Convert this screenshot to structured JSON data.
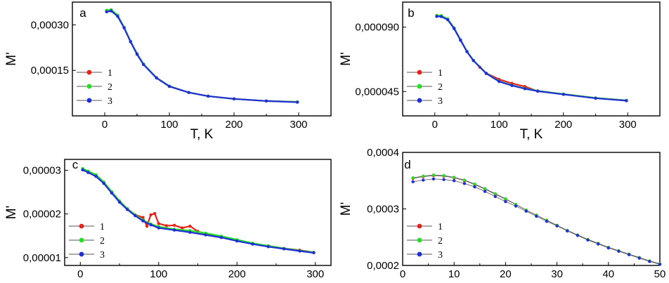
{
  "colors": {
    "s1": "#e8221b",
    "s2": "#22e022",
    "s3": "#1f2fd6",
    "axis": "#000000",
    "line": "#666666"
  },
  "chart_data": [
    {
      "type": "scatter",
      "panel": "a",
      "xlabel": "T, K",
      "ylabel": "M'",
      "xlim": [
        -50,
        350
      ],
      "ylim": [
        0.0,
        0.000375
      ],
      "xticks": [
        0,
        100,
        200,
        300
      ],
      "xtick_labels": [
        "0",
        "100",
        "200",
        "300"
      ],
      "yticks": [
        0.00015,
        0.0003
      ],
      "ytick_labels": [
        "0,00015",
        "0,00030"
      ],
      "legend": [
        "1",
        "2",
        "3"
      ],
      "series": [
        {
          "name": "1",
          "x": [
            3,
            10,
            20,
            30,
            40,
            50,
            60,
            80,
            100,
            130,
            160,
            200,
            250,
            298
          ],
          "y": [
            0.000345,
            0.000348,
            0.00033,
            0.000291,
            0.000245,
            0.000204,
            0.00017,
            0.000126,
            9.8e-05,
            7.7e-05,
            6.5e-05,
            5.6e-05,
            4.9e-05,
            4.6e-05
          ]
        },
        {
          "name": "2",
          "x": [
            3,
            10,
            20,
            30,
            40,
            50,
            60,
            80,
            100,
            130,
            160,
            200,
            250,
            298
          ],
          "y": [
            0.000348,
            0.00035,
            0.000332,
            0.000292,
            0.000246,
            0.000205,
            0.000171,
            0.000126,
            9.8e-05,
            7.7e-05,
            6.5e-05,
            5.6e-05,
            4.9e-05,
            4.6e-05
          ]
        },
        {
          "name": "3",
          "x": [
            3,
            10,
            20,
            30,
            40,
            50,
            60,
            80,
            100,
            130,
            160,
            200,
            250,
            298
          ],
          "y": [
            0.000343,
            0.000346,
            0.000328,
            0.00029,
            0.000244,
            0.000203,
            0.000169,
            0.000125,
            9.7e-05,
            7.7e-05,
            6.5e-05,
            5.6e-05,
            4.9e-05,
            4.5e-05
          ]
        }
      ]
    },
    {
      "type": "scatter",
      "panel": "b",
      "xlabel": "T, K",
      "ylabel": "M'",
      "xlim": [
        -50,
        350
      ],
      "ylim": [
        2.8e-05,
        0.0001075
      ],
      "xticks": [
        0,
        100,
        200,
        300
      ],
      "xtick_labels": [
        "0",
        "100",
        "200",
        "300"
      ],
      "yticks": [
        4.5e-05,
        9e-05
      ],
      "ytick_labels": [
        "0,000045",
        "0,000090"
      ],
      "legend": [
        "1",
        "2",
        "3"
      ],
      "series": [
        {
          "name": "1",
          "x": [
            3,
            10,
            20,
            30,
            40,
            50,
            60,
            70,
            80,
            100,
            120,
            140,
            160,
            200,
            250,
            298
          ],
          "y": [
            9.78e-05,
            9.77e-05,
            9.55e-05,
            8.93e-05,
            8.1e-05,
            7.3e-05,
            6.68e-05,
            6.2e-05,
            5.78e-05,
            5.35e-05,
            5.07e-05,
            4.85e-05,
            4.52e-05,
            4.32e-05,
            4.05e-05,
            3.88e-05
          ]
        },
        {
          "name": "2",
          "x": [
            3,
            10,
            20,
            30,
            40,
            50,
            60,
            80,
            100,
            120,
            140,
            160,
            200,
            250,
            298
          ],
          "y": [
            9.82e-05,
            9.8e-05,
            9.58e-05,
            8.95e-05,
            8.12e-05,
            7.31e-05,
            6.68e-05,
            5.78e-05,
            5.22e-05,
            4.94e-05,
            4.72e-05,
            4.55e-05,
            4.32e-05,
            4.05e-05,
            3.88e-05
          ]
        },
        {
          "name": "3",
          "x": [
            3,
            10,
            20,
            30,
            40,
            50,
            60,
            80,
            100,
            120,
            140,
            160,
            200,
            250,
            298
          ],
          "y": [
            9.75e-05,
            9.74e-05,
            9.52e-05,
            8.9e-05,
            8.08e-05,
            7.28e-05,
            6.66e-05,
            5.76e-05,
            5.2e-05,
            4.92e-05,
            4.7e-05,
            4.53e-05,
            4.3e-05,
            4.03e-05,
            3.86e-05
          ]
        }
      ]
    },
    {
      "type": "scatter",
      "panel": "c",
      "xlabel": "",
      "ylabel": "M'",
      "xlim": [
        -20,
        320
      ],
      "ylim": [
        8.2e-06,
        3.25e-05
      ],
      "xticks": [
        0,
        100,
        200,
        300
      ],
      "xtick_labels": [
        "0",
        "100",
        "200",
        "300"
      ],
      "yticks": [
        1e-05,
        2e-05,
        3e-05
      ],
      "ytick_labels": [
        "0,00001",
        "0,00002",
        "0,00003"
      ],
      "legend": [
        "1",
        "2",
        "3"
      ],
      "series": [
        {
          "name": "1",
          "x": [
            3,
            10,
            20,
            30,
            40,
            50,
            60,
            70,
            80,
            85,
            90,
            95,
            100,
            110,
            120,
            130,
            140,
            150,
            160,
            180,
            200,
            220,
            240,
            260,
            280,
            298
          ],
          "y": [
            3.02e-05,
            2.96e-05,
            2.89e-05,
            2.72e-05,
            2.5e-05,
            2.29e-05,
            2.12e-05,
            1.98e-05,
            1.92e-05,
            1.72e-05,
            1.98e-05,
            2.01e-05,
            1.78e-05,
            1.73e-05,
            1.74e-05,
            1.68e-05,
            1.72e-05,
            1.6e-05,
            1.55e-05,
            1.48e-05,
            1.39e-05,
            1.32e-05,
            1.27e-05,
            1.21e-05,
            1.17e-05,
            1.12e-05
          ]
        },
        {
          "name": "2",
          "x": [
            3,
            10,
            20,
            30,
            40,
            50,
            60,
            70,
            80,
            90,
            100,
            120,
            140,
            160,
            180,
            200,
            220,
            240,
            260,
            280,
            298
          ],
          "y": [
            3.04e-05,
            2.98e-05,
            2.9e-05,
            2.73e-05,
            2.51e-05,
            2.3e-05,
            2.12e-05,
            1.98e-05,
            1.86e-05,
            1.77e-05,
            1.71e-05,
            1.65e-05,
            1.62e-05,
            1.56e-05,
            1.49e-05,
            1.41e-05,
            1.33e-05,
            1.27e-05,
            1.21e-05,
            1.16e-05,
            1.12e-05
          ]
        },
        {
          "name": "3",
          "x": [
            3,
            10,
            20,
            30,
            40,
            50,
            60,
            70,
            80,
            90,
            100,
            120,
            140,
            160,
            180,
            200,
            220,
            240,
            260,
            280,
            298
          ],
          "y": [
            3.01e-05,
            2.95e-05,
            2.86e-05,
            2.7e-05,
            2.48e-05,
            2.27e-05,
            2.1e-05,
            1.96e-05,
            1.84e-05,
            1.75e-05,
            1.68e-05,
            1.63e-05,
            1.58e-05,
            1.52e-05,
            1.46e-05,
            1.38e-05,
            1.31e-05,
            1.25e-05,
            1.2e-05,
            1.15e-05,
            1.11e-05
          ]
        }
      ]
    },
    {
      "type": "line",
      "panel": "d",
      "xlabel": "",
      "ylabel": "M'",
      "xlim": [
        0,
        50
      ],
      "ylim": [
        0.0002,
        0.0004
      ],
      "xticks": [
        0,
        10,
        20,
        30,
        40,
        50
      ],
      "xtick_labels": [
        "0",
        "10",
        "20",
        "30",
        "40",
        "50"
      ],
      "yticks": [
        0.0002,
        0.0003,
        0.0004
      ],
      "ytick_labels": [
        "0,0002",
        "0,0003",
        "0,0004"
      ],
      "legend": [
        "1",
        "2",
        "3"
      ],
      "series": [
        {
          "name": "1",
          "x": [
            2,
            4,
            6,
            8,
            10,
            12,
            14,
            16,
            18,
            20,
            22,
            24,
            26,
            28,
            30,
            32,
            34,
            36,
            38,
            40,
            42,
            44,
            46,
            48,
            50
          ],
          "y": [
            0.000354,
            0.000357,
            0.000359,
            0.000358,
            0.000355,
            0.00035,
            0.000343,
            0.000335,
            0.000326,
            0.000317,
            0.000308,
            0.000298,
            0.000289,
            0.00028,
            0.000271,
            0.000262,
            0.000254,
            0.000246,
            0.000239,
            0.000232,
            0.000226,
            0.00022,
            0.000214,
            0.000208,
            0.000203
          ]
        },
        {
          "name": "2",
          "x": [
            2,
            4,
            6,
            8,
            10,
            12,
            14,
            16,
            18,
            20,
            22,
            24,
            26,
            28,
            30,
            32,
            34,
            36,
            38,
            40,
            42,
            44,
            46,
            48,
            50
          ],
          "y": [
            0.000355,
            0.000358,
            0.00036,
            0.000359,
            0.000356,
            0.000351,
            0.000344,
            0.000336,
            0.000327,
            0.000318,
            0.000308,
            0.000298,
            0.000289,
            0.00028,
            0.000271,
            0.000262,
            0.000254,
            0.000246,
            0.000239,
            0.000232,
            0.000226,
            0.00022,
            0.000214,
            0.000208,
            0.000203
          ]
        },
        {
          "name": "3",
          "x": [
            2,
            4,
            6,
            8,
            10,
            12,
            14,
            16,
            18,
            20,
            22,
            24,
            26,
            28,
            30,
            32,
            34,
            36,
            38,
            40,
            42,
            44,
            46,
            48,
            50
          ],
          "y": [
            0.000348,
            0.000351,
            0.000353,
            0.000352,
            0.00035,
            0.000345,
            0.000339,
            0.000331,
            0.000322,
            0.000313,
            0.000305,
            0.000296,
            0.000287,
            0.000278,
            0.00027,
            0.000261,
            0.000253,
            0.000245,
            0.000238,
            0.000231,
            0.000225,
            0.000219,
            0.000213,
            0.000207,
            0.000202
          ]
        }
      ]
    }
  ]
}
